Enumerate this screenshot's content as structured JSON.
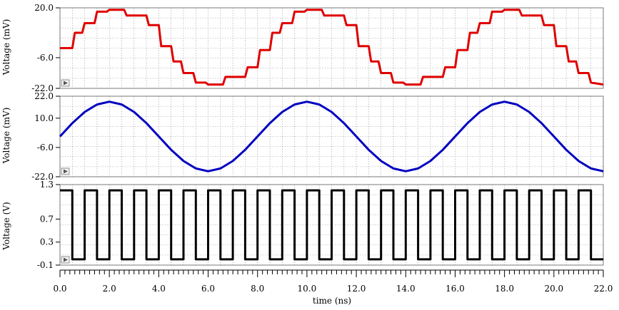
{
  "chart_data": {
    "type": "line",
    "xlabel": "time (ns)",
    "xlim": [
      0,
      22
    ],
    "xticks": [
      "0.0",
      "2.0",
      "4.0",
      "6.0",
      "8.0",
      "10.0",
      "12.0",
      "14.0",
      "16.0",
      "18.0",
      "20.0",
      "22.0"
    ],
    "grid": true,
    "panels": [
      {
        "ylabel": "Voltage (mV)",
        "ylim": [
          -22,
          20
        ],
        "yticks": [
          "20.0",
          "-6.0",
          "-22.0"
        ],
        "series": [
          {
            "color": "#e00000",
            "style": "staircase sine",
            "x": [
              0.0,
              0.5,
              0.6,
              0.9,
              1.0,
              1.4,
              1.5,
              1.9,
              2.0,
              2.6,
              2.7,
              3.0,
              3.5,
              3.6,
              4.0,
              4.1,
              4.5,
              4.6,
              4.9,
              5.0,
              5.4,
              5.5,
              5.9,
              6.0,
              6.6,
              6.7,
              7.0,
              7.5,
              7.6,
              8.0,
              8.1,
              8.5,
              8.6,
              8.9,
              9.0,
              9.4,
              9.5,
              9.9,
              10.0,
              10.6,
              10.7,
              11.0,
              11.5,
              11.6,
              12.0,
              12.1,
              12.5,
              12.6,
              12.9,
              13.0,
              13.4,
              13.5,
              13.9,
              14.0,
              14.6,
              14.7,
              15.0,
              15.5,
              15.6,
              16.0,
              16.1,
              16.5,
              16.6,
              16.9,
              17.0,
              17.4,
              17.5,
              17.9,
              18.0,
              18.6,
              18.7,
              19.0,
              19.5,
              19.6,
              20.0,
              20.1,
              20.5,
              20.6,
              20.9,
              21.0,
              21.4,
              21.5,
              22.0
            ],
            "y": [
              -1.0,
              -1.0,
              7.0,
              7.0,
              12.0,
              12.0,
              18.0,
              18.0,
              19.0,
              19.0,
              16.0,
              16.0,
              16.0,
              11.0,
              11.0,
              0.0,
              0.0,
              -8.0,
              -8.0,
              -14.0,
              -14.0,
              -19.0,
              -19.0,
              -20.0,
              -20.0,
              -16.0,
              -16.0,
              -16.0,
              -11.0,
              -11.0,
              -2.0,
              -2.0,
              7.0,
              7.0,
              12.0,
              12.0,
              18.0,
              18.0,
              19.0,
              19.0,
              16.0,
              16.0,
              16.0,
              11.0,
              11.0,
              0.0,
              0.0,
              -8.0,
              -8.0,
              -14.0,
              -14.0,
              -19.0,
              -19.0,
              -20.0,
              -20.0,
              -16.0,
              -16.0,
              -16.0,
              -11.0,
              -11.0,
              -2.0,
              -2.0,
              7.0,
              7.0,
              12.0,
              12.0,
              18.0,
              18.0,
              19.0,
              19.0,
              16.0,
              16.0,
              16.0,
              11.0,
              11.0,
              0.0,
              0.0,
              -8.0,
              -8.0,
              -14.0,
              -14.0,
              -19.0,
              -20.0
            ]
          }
        ]
      },
      {
        "ylabel": "Voltage (mV)",
        "ylim": [
          -22,
          22
        ],
        "yticks": [
          "22.0",
          "10.0",
          "-6.0",
          "-22.0"
        ],
        "series": [
          {
            "color": "#0000c0",
            "style": "sine",
            "x": [
              0.0,
              0.5,
              1.0,
              1.5,
              2.0,
              2.5,
              3.0,
              3.5,
              4.0,
              4.5,
              5.0,
              5.5,
              6.0,
              6.5,
              7.0,
              7.5,
              8.0,
              8.5,
              9.0,
              9.5,
              10.0,
              10.5,
              11.0,
              11.5,
              12.0,
              12.5,
              13.0,
              13.5,
              14.0,
              14.5,
              15.0,
              15.5,
              16.0,
              16.5,
              17.0,
              17.5,
              18.0,
              18.5,
              19.0,
              19.5,
              20.0,
              20.5,
              21.0,
              21.5,
              22.0
            ],
            "y": [
              0.0,
              7.3,
              13.4,
              17.5,
              19.0,
              17.5,
              13.4,
              7.3,
              0.0,
              -7.3,
              -13.4,
              -17.5,
              -19.0,
              -17.5,
              -13.4,
              -7.3,
              0.0,
              7.3,
              13.4,
              17.5,
              19.0,
              17.5,
              13.4,
              7.3,
              0.0,
              -7.3,
              -13.4,
              -17.5,
              -19.0,
              -17.5,
              -13.4,
              -7.3,
              0.0,
              7.3,
              13.4,
              17.5,
              19.0,
              17.5,
              13.4,
              7.3,
              0.0,
              -7.3,
              -13.4,
              -17.5,
              -19.0
            ]
          }
        ]
      },
      {
        "ylabel": "Voltage (V)",
        "ylim": [
          -0.1,
          1.3
        ],
        "yticks": [
          "1.3",
          "0.7",
          "0.3",
          "-0.1"
        ],
        "series": [
          {
            "color": "#000000",
            "style": "square wave",
            "period": 1.0,
            "duty": 0.5,
            "high": 1.2,
            "low": 0.0
          }
        ]
      }
    ]
  }
}
